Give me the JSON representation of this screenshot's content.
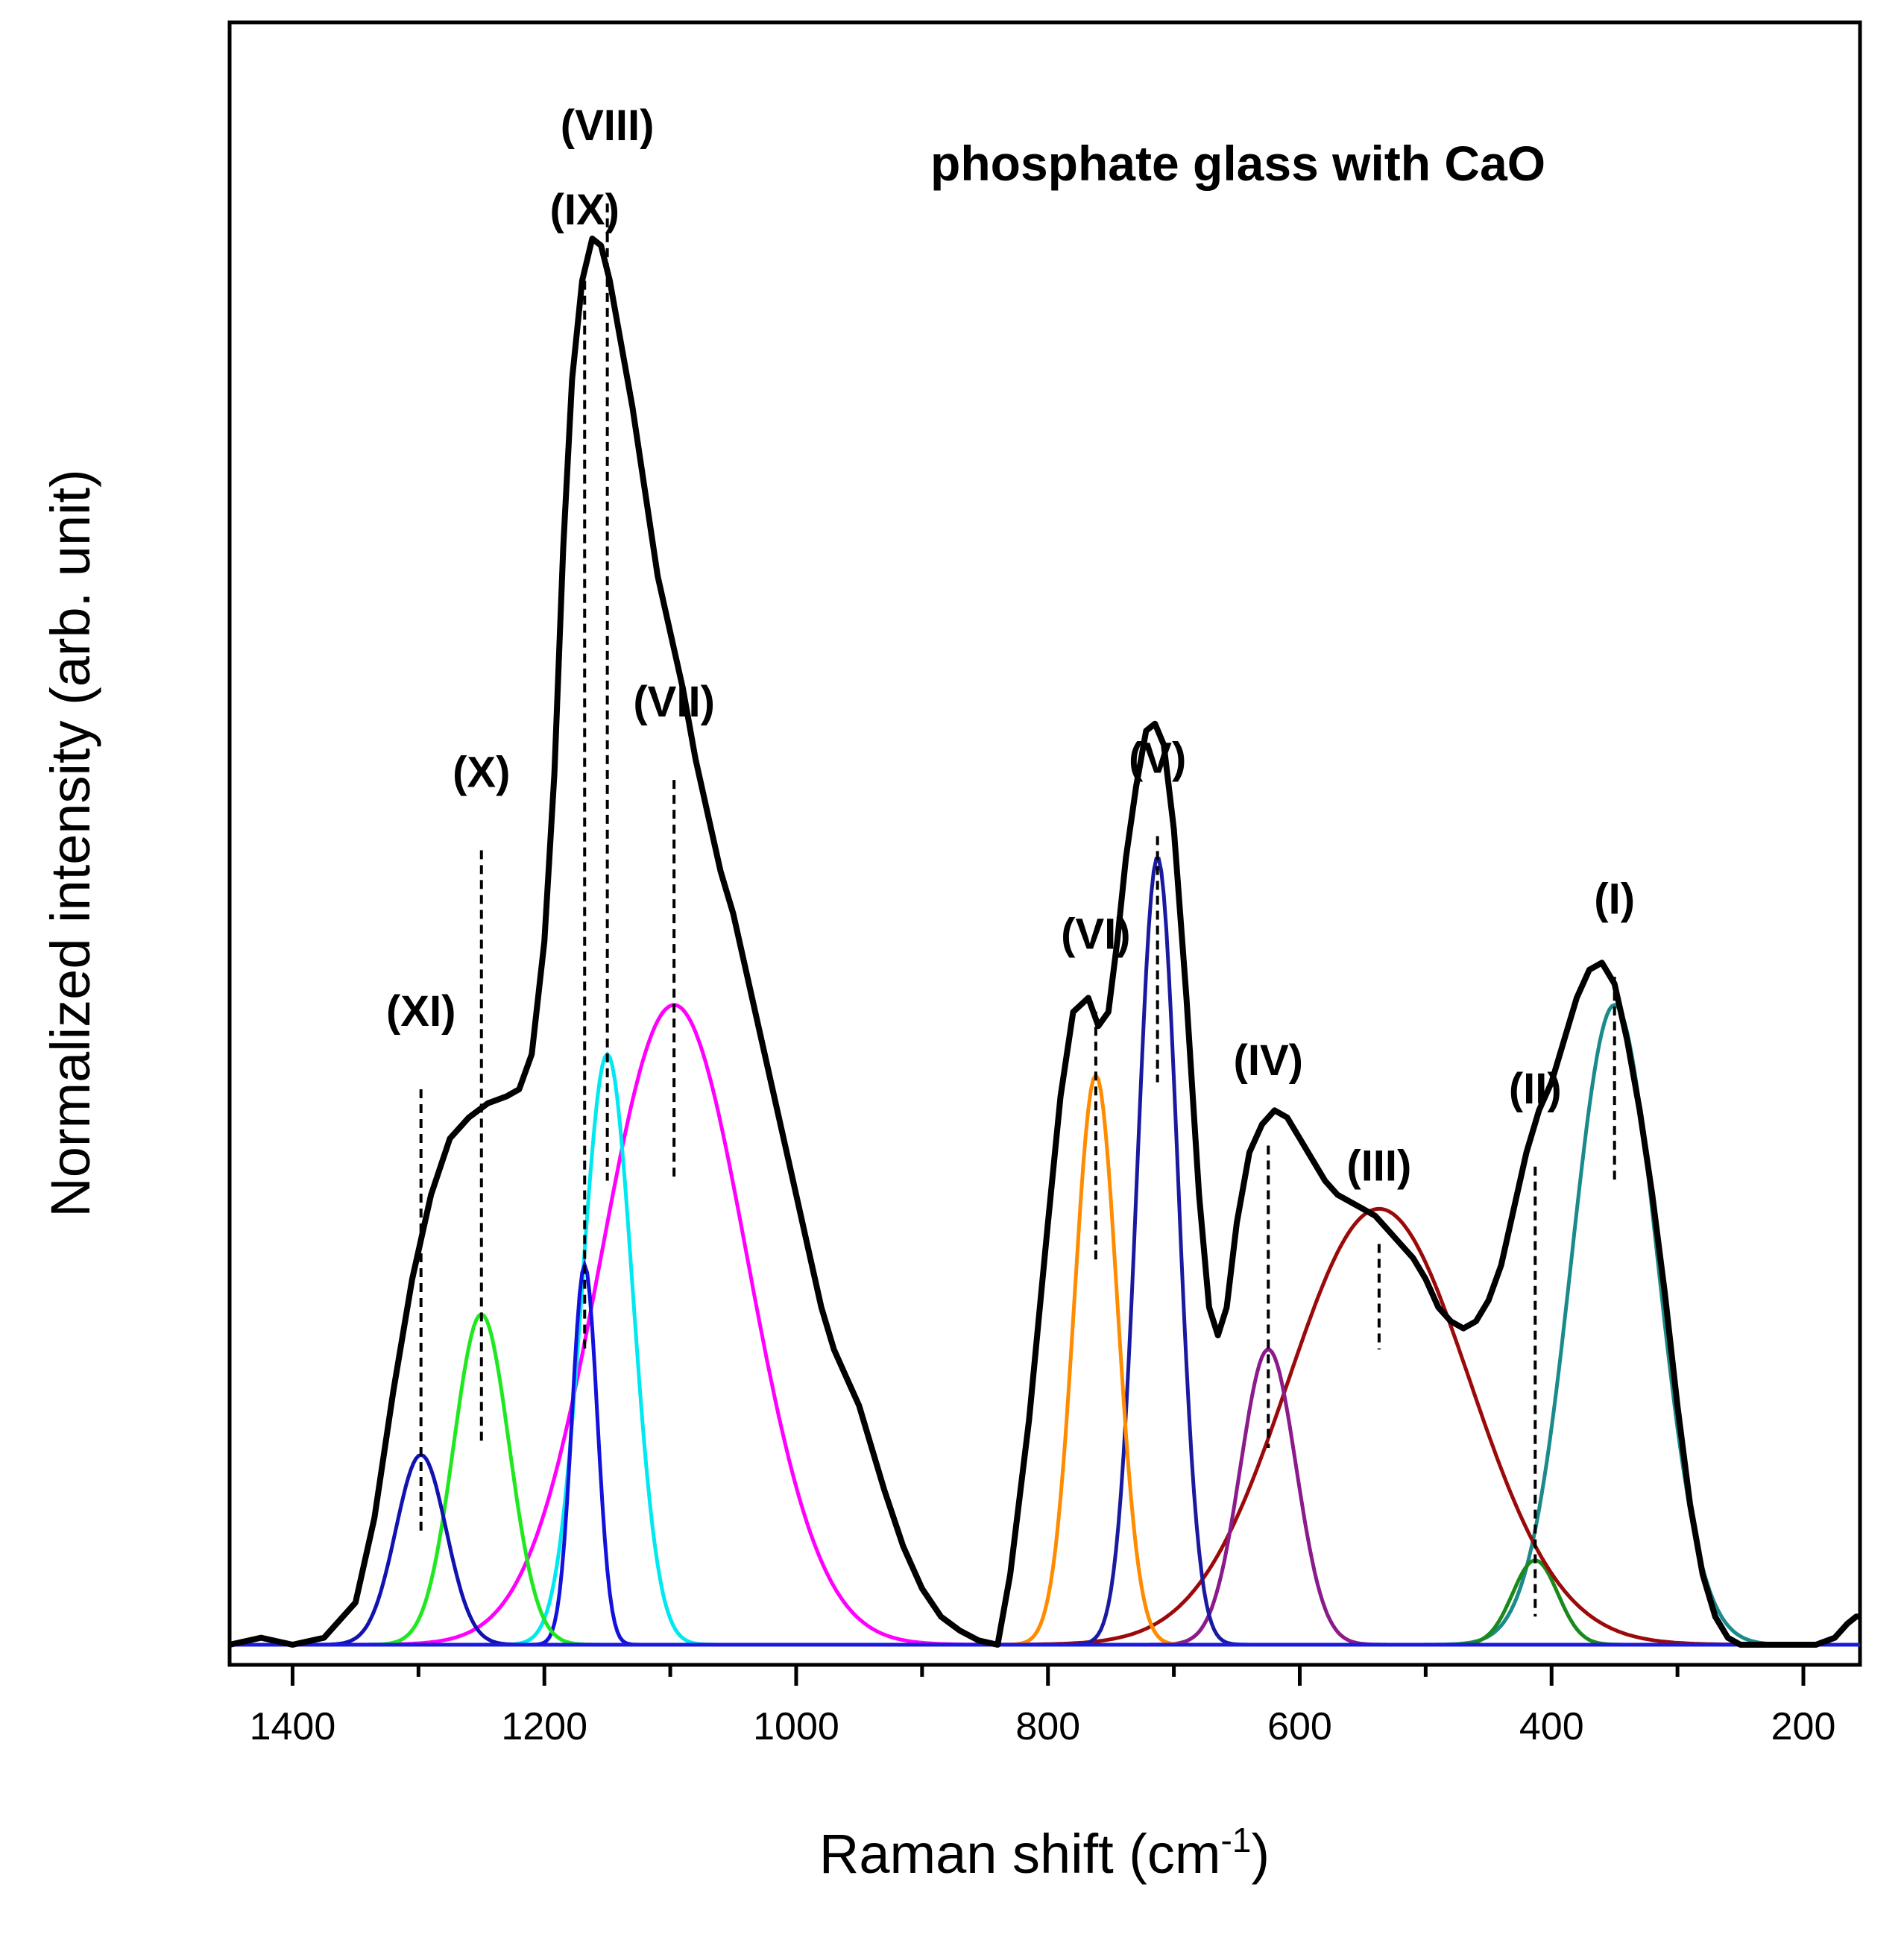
{
  "chart_data": {
    "type": "line",
    "title": "phosphate glass with CaO",
    "xlabel": "Raman shift (cm",
    "xlabel_sup": "-1",
    "xlabel_end": ")",
    "ylabel": "Normalized intensity (arb. unit)",
    "xlim": [
      1450,
      155
    ],
    "ylim": [
      -0.01,
      1.0
    ],
    "x_reversed": true,
    "grid": false,
    "legend": "none",
    "x_ticks": [
      1400,
      1200,
      1000,
      800,
      600,
      400,
      200
    ],
    "x_minor_ticks": [
      1300,
      1100,
      900,
      700,
      500,
      300
    ],
    "baseline_color": "#1a1adc",
    "measured": {
      "color": "#000000",
      "points": [
        [
          1450,
          0.0
        ],
        [
          1425,
          0.005
        ],
        [
          1400,
          0.0
        ],
        [
          1375,
          0.005
        ],
        [
          1350,
          0.03
        ],
        [
          1335,
          0.09
        ],
        [
          1320,
          0.18
        ],
        [
          1305,
          0.26
        ],
        [
          1290,
          0.32
        ],
        [
          1275,
          0.36
        ],
        [
          1260,
          0.375
        ],
        [
          1245,
          0.385
        ],
        [
          1230,
          0.39
        ],
        [
          1220,
          0.395
        ],
        [
          1210,
          0.42
        ],
        [
          1200,
          0.5
        ],
        [
          1192,
          0.62
        ],
        [
          1185,
          0.78
        ],
        [
          1178,
          0.9
        ],
        [
          1170,
          0.97
        ],
        [
          1162,
          1.0
        ],
        [
          1155,
          0.995
        ],
        [
          1148,
          0.97
        ],
        [
          1140,
          0.93
        ],
        [
          1130,
          0.88
        ],
        [
          1120,
          0.82
        ],
        [
          1110,
          0.76
        ],
        [
          1100,
          0.72
        ],
        [
          1090,
          0.68
        ],
        [
          1080,
          0.63
        ],
        [
          1070,
          0.59
        ],
        [
          1060,
          0.55
        ],
        [
          1050,
          0.52
        ],
        [
          1040,
          0.48
        ],
        [
          1030,
          0.44
        ],
        [
          1020,
          0.4
        ],
        [
          1010,
          0.36
        ],
        [
          1000,
          0.32
        ],
        [
          990,
          0.28
        ],
        [
          980,
          0.24
        ],
        [
          970,
          0.21
        ],
        [
          960,
          0.19
        ],
        [
          950,
          0.17
        ],
        [
          940,
          0.14
        ],
        [
          930,
          0.11
        ],
        [
          915,
          0.07
        ],
        [
          900,
          0.04
        ],
        [
          885,
          0.02
        ],
        [
          870,
          0.01
        ],
        [
          855,
          0.003
        ],
        [
          840,
          0.0
        ],
        [
          830,
          0.05
        ],
        [
          815,
          0.16
        ],
        [
          800,
          0.3
        ],
        [
          790,
          0.39
        ],
        [
          780,
          0.45
        ],
        [
          768,
          0.46
        ],
        [
          760,
          0.44
        ],
        [
          752,
          0.45
        ],
        [
          745,
          0.5
        ],
        [
          738,
          0.56
        ],
        [
          730,
          0.61
        ],
        [
          722,
          0.65
        ],
        [
          715,
          0.655
        ],
        [
          708,
          0.64
        ],
        [
          700,
          0.58
        ],
        [
          690,
          0.46
        ],
        [
          680,
          0.32
        ],
        [
          672,
          0.24
        ],
        [
          665,
          0.22
        ],
        [
          658,
          0.24
        ],
        [
          650,
          0.3
        ],
        [
          640,
          0.35
        ],
        [
          630,
          0.37
        ],
        [
          620,
          0.38
        ],
        [
          610,
          0.375
        ],
        [
          600,
          0.36
        ],
        [
          590,
          0.345
        ],
        [
          580,
          0.33
        ],
        [
          570,
          0.32
        ],
        [
          560,
          0.315
        ],
        [
          550,
          0.31
        ],
        [
          540,
          0.305
        ],
        [
          530,
          0.295
        ],
        [
          520,
          0.285
        ],
        [
          510,
          0.275
        ],
        [
          500,
          0.26
        ],
        [
          490,
          0.24
        ],
        [
          480,
          0.23
        ],
        [
          470,
          0.225
        ],
        [
          460,
          0.23
        ],
        [
          450,
          0.245
        ],
        [
          440,
          0.27
        ],
        [
          430,
          0.31
        ],
        [
          420,
          0.35
        ],
        [
          410,
          0.38
        ],
        [
          400,
          0.4
        ],
        [
          390,
          0.43
        ],
        [
          380,
          0.46
        ],
        [
          370,
          0.48
        ],
        [
          360,
          0.485
        ],
        [
          350,
          0.47
        ],
        [
          340,
          0.43
        ],
        [
          330,
          0.38
        ],
        [
          320,
          0.32
        ],
        [
          310,
          0.25
        ],
        [
          300,
          0.17
        ],
        [
          290,
          0.1
        ],
        [
          280,
          0.05
        ],
        [
          270,
          0.02
        ],
        [
          260,
          0.005
        ],
        [
          250,
          0.0
        ],
        [
          230,
          0.0
        ],
        [
          210,
          0.0
        ],
        [
          190,
          0.0
        ],
        [
          175,
          0.005
        ],
        [
          165,
          0.015
        ],
        [
          158,
          0.02
        ],
        [
          155,
          0.02
        ]
      ]
    },
    "components": [
      {
        "label": "(I)",
        "center": 350,
        "width": 34,
        "amplitude": 0.455,
        "color": "#1a8a8a",
        "line_top": 0.475,
        "line_bottom": 0.33,
        "label_y": 0.52
      },
      {
        "label": "(II)",
        "center": 413,
        "width": 18,
        "amplitude": 0.06,
        "color": "#1b8a1b",
        "line_top": 0.34,
        "line_bottom": 0.02,
        "label_y": 0.385
      },
      {
        "label": "(III)",
        "center": 537,
        "width": 72,
        "amplitude": 0.31,
        "color": "#9b0a0a",
        "line_top": 0.285,
        "line_bottom": 0.21,
        "label_y": 0.33
      },
      {
        "label": "(IV)",
        "center": 625,
        "width": 22,
        "amplitude": 0.21,
        "color": "#8b1a8b",
        "line_top": 0.355,
        "line_bottom": 0.14,
        "label_y": 0.405
      },
      {
        "label": "(V)",
        "center": 713,
        "width": 16,
        "amplitude": 0.56,
        "color": "#1a1aa0",
        "line_top": 0.575,
        "line_bottom": 0.4,
        "label_y": 0.62
      },
      {
        "label": "(VI)",
        "center": 762,
        "width": 17,
        "amplitude": 0.405,
        "color": "#ff8c00",
        "line_top": 0.45,
        "line_bottom": 0.27,
        "label_y": 0.495
      },
      {
        "label": "(VII)",
        "center": 1097,
        "width": 58,
        "amplitude": 0.455,
        "color": "#ff00ff",
        "line_top": 0.615,
        "line_bottom": 0.33,
        "label_y": 0.66
      },
      {
        "label": "(VIII)",
        "center": 1150,
        "width": 20,
        "amplitude": 0.42,
        "color": "#00e8f0",
        "line_top": 1.025,
        "line_bottom": 0.33,
        "label_y": 1.07
      },
      {
        "label": "(IX)",
        "center": 1168,
        "width": 10,
        "amplitude": 0.27,
        "color": "#1212dc",
        "line_top": 0.97,
        "line_bottom": 0.21,
        "label_y": 1.01
      },
      {
        "label": "(X)",
        "center": 1250,
        "width": 22,
        "amplitude": 0.235,
        "color": "#20e820",
        "line_top": 0.565,
        "line_bottom": 0.145,
        "label_y": 0.61
      },
      {
        "label": "(XI)",
        "center": 1298,
        "width": 20,
        "amplitude": 0.135,
        "color": "#1212b0",
        "line_top": 0.395,
        "line_bottom": 0.08,
        "label_y": 0.44
      }
    ]
  }
}
